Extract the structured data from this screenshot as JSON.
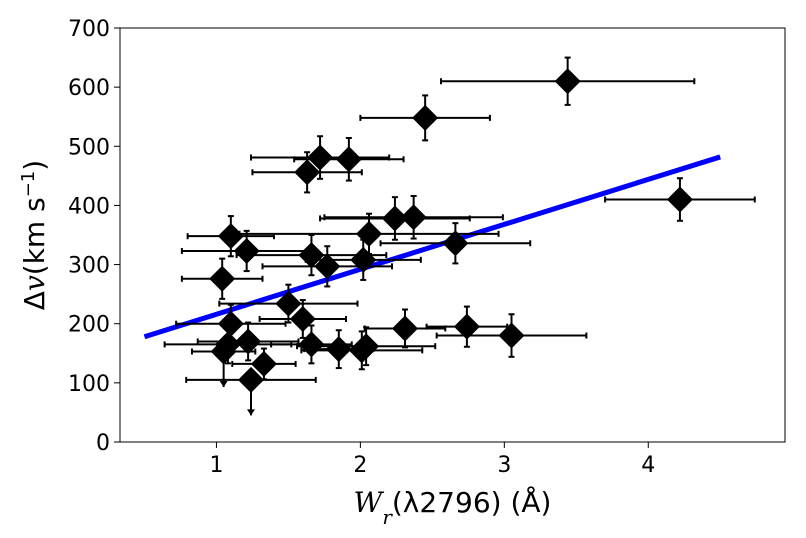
{
  "chart_data": {
    "type": "scatter",
    "xlabel": "W_r(λ2796) (Å)",
    "ylabel": "Δv(km s⁻¹)",
    "xlabel_parts": {
      "var": "W",
      "sub": "r",
      "rest": "(λ2796) (Å)"
    },
    "ylabel_parts": {
      "delta": "Δ",
      "var": "v",
      "rest": "(km s",
      "sup": "−1",
      "close": ")"
    },
    "xlim": [
      0.33,
      4.95
    ],
    "ylim": [
      0,
      700
    ],
    "xticks": [
      1,
      2,
      3,
      4
    ],
    "yticks": [
      0,
      100,
      200,
      300,
      400,
      500,
      600,
      700
    ],
    "marker_color": "#000000",
    "fit_color": "#0000ff",
    "points": [
      {
        "x": 3.44,
        "y": 610,
        "xerr": [
          0.88,
          0.88
        ],
        "yerr": [
          40,
          40
        ]
      },
      {
        "x": 2.45,
        "y": 548,
        "xerr": [
          0.45,
          0.45
        ],
        "yerr": [
          38,
          38
        ]
      },
      {
        "x": 1.72,
        "y": 481,
        "xerr": [
          0.48,
          0.48
        ],
        "yerr": [
          36,
          36
        ]
      },
      {
        "x": 1.92,
        "y": 478,
        "xerr": [
          0.38,
          0.38
        ],
        "yerr": [
          36,
          36
        ]
      },
      {
        "x": 1.63,
        "y": 456,
        "xerr": [
          0.38,
          0.38
        ],
        "yerr": [
          34,
          34
        ]
      },
      {
        "x": 4.22,
        "y": 410,
        "xerr": [
          0.52,
          0.52
        ],
        "yerr": [
          36,
          36
        ]
      },
      {
        "x": 2.24,
        "y": 378,
        "xerr": [
          0.52,
          0.52
        ],
        "yerr": [
          36,
          36
        ]
      },
      {
        "x": 2.37,
        "y": 380,
        "xerr": [
          0.62,
          0.62
        ],
        "yerr": [
          36,
          36
        ]
      },
      {
        "x": 1.1,
        "y": 348,
        "xerr": [
          0.3,
          0.3
        ],
        "yerr": [
          34,
          34
        ]
      },
      {
        "x": 2.06,
        "y": 352,
        "xerr": [
          0.9,
          0.9
        ],
        "yerr": [
          34,
          34
        ]
      },
      {
        "x": 2.66,
        "y": 336,
        "xerr": [
          0.52,
          0.52
        ],
        "yerr": [
          34,
          34
        ]
      },
      {
        "x": 1.21,
        "y": 323,
        "xerr": [
          0.45,
          0.45
        ],
        "yerr": [
          34,
          34
        ]
      },
      {
        "x": 1.66,
        "y": 316,
        "xerr": [
          0.52,
          0.52
        ],
        "yerr": [
          34,
          34
        ]
      },
      {
        "x": 1.77,
        "y": 297,
        "xerr": [
          0.45,
          0.45
        ],
        "yerr": [
          34,
          34
        ]
      },
      {
        "x": 2.02,
        "y": 308,
        "xerr": [
          0.4,
          0.4
        ],
        "yerr": [
          34,
          34
        ]
      },
      {
        "x": 1.04,
        "y": 276,
        "xerr": [
          0.28,
          0.28
        ],
        "yerr": [
          34,
          34
        ]
      },
      {
        "x": 1.5,
        "y": 234,
        "xerr": [
          0.48,
          0.48
        ],
        "yerr": [
          32,
          32
        ]
      },
      {
        "x": 1.6,
        "y": 208,
        "xerr": [
          0.3,
          0.3
        ],
        "yerr": [
          32,
          32
        ]
      },
      {
        "x": 1.1,
        "y": 200,
        "xerr": [
          0.38,
          0.38
        ],
        "yerr": [
          32,
          32
        ]
      },
      {
        "x": 1.22,
        "y": 170,
        "xerr": [
          0.35,
          0.35
        ],
        "yerr": [
          32,
          32
        ]
      },
      {
        "x": 1.08,
        "y": 165,
        "xerr": [
          0.44,
          0.44
        ],
        "yerr": [
          32,
          32
        ]
      },
      {
        "x": 1.05,
        "y": 153,
        "xerr": [
          0.22,
          0.22
        ],
        "yerr": [
          26,
          26
        ],
        "upper_limit": true
      },
      {
        "x": 1.66,
        "y": 165,
        "xerr": [
          0.28,
          0.28
        ],
        "yerr": [
          32,
          32
        ]
      },
      {
        "x": 1.85,
        "y": 157,
        "xerr": [
          0.24,
          0.24
        ],
        "yerr": [
          32,
          32
        ]
      },
      {
        "x": 2.01,
        "y": 155,
        "xerr": [
          0.42,
          0.42
        ],
        "yerr": [
          32,
          32
        ]
      },
      {
        "x": 2.04,
        "y": 162,
        "xerr": [
          0.48,
          0.48
        ],
        "yerr": [
          32,
          32
        ]
      },
      {
        "x": 2.31,
        "y": 192,
        "xerr": [
          0.28,
          0.28
        ],
        "yerr": [
          32,
          32
        ]
      },
      {
        "x": 2.74,
        "y": 195,
        "xerr": [
          0.28,
          0.28
        ],
        "yerr": [
          34,
          34
        ]
      },
      {
        "x": 3.05,
        "y": 180,
        "xerr": [
          0.52,
          0.52
        ],
        "yerr": [
          36,
          36
        ]
      },
      {
        "x": 1.33,
        "y": 132,
        "xerr": [
          0.22,
          0.22
        ],
        "yerr": [
          26,
          26
        ]
      },
      {
        "x": 1.24,
        "y": 105,
        "xerr": [
          0.45,
          0.45
        ],
        "yerr": [
          26,
          26
        ],
        "upper_limit": true
      }
    ],
    "fit_line": {
      "x": [
        0.5,
        4.5
      ],
      "y": [
        178,
        482
      ]
    }
  }
}
